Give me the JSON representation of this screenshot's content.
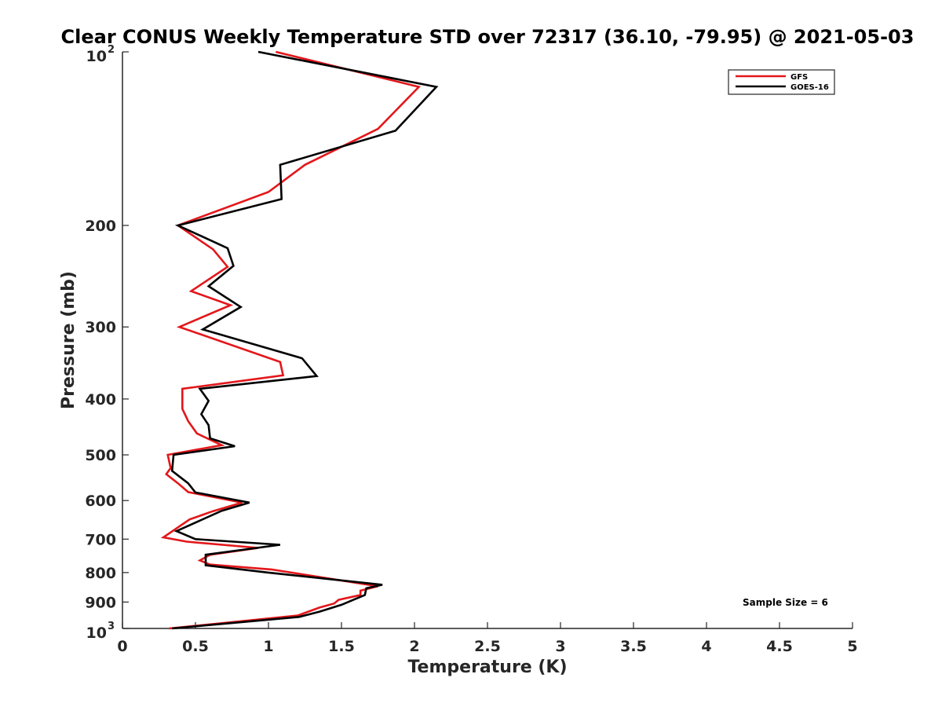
{
  "chart_data": {
    "type": "line",
    "title": "Clear CONUS Weekly Temperature STD over 72317 (36.10, -79.95) @ 2021-05-03",
    "xlabel": "Temperature (K)",
    "ylabel": "Pressure (mb)",
    "xlim": [
      0,
      5
    ],
    "ylim": [
      100,
      1000
    ],
    "y_scale": "log",
    "y_reversed": true,
    "grid": false,
    "legend_position": "top-right",
    "x_ticks": [
      {
        "value": 0,
        "label": "0"
      },
      {
        "value": 0.5,
        "label": "0.5"
      },
      {
        "value": 1,
        "label": "1"
      },
      {
        "value": 1.5,
        "label": "1.5"
      },
      {
        "value": 2,
        "label": "2"
      },
      {
        "value": 2.5,
        "label": "2.5"
      },
      {
        "value": 3,
        "label": "3"
      },
      {
        "value": 3.5,
        "label": "3.5"
      },
      {
        "value": 4,
        "label": "4"
      },
      {
        "value": 4.5,
        "label": "4.5"
      },
      {
        "value": 5,
        "label": "5"
      }
    ],
    "y_ticks": [
      {
        "value": 100,
        "label": "10",
        "sup": "2"
      },
      {
        "value": 200,
        "label": "200"
      },
      {
        "value": 300,
        "label": "300"
      },
      {
        "value": 400,
        "label": "400"
      },
      {
        "value": 500,
        "label": "500"
      },
      {
        "value": 600,
        "label": "600"
      },
      {
        "value": 700,
        "label": "700"
      },
      {
        "value": 800,
        "label": "800"
      },
      {
        "value": 900,
        "label": "900"
      },
      {
        "value": 1000,
        "label": "10",
        "sup": "3"
      }
    ],
    "annotation": "Sample Size = 6",
    "series": [
      {
        "name": "GFS",
        "color": "#e3171b",
        "points": [
          [
            1.05,
            100
          ],
          [
            2.03,
            115
          ],
          [
            1.75,
            136
          ],
          [
            1.25,
            157
          ],
          [
            1.0,
            175
          ],
          [
            0.38,
            200
          ],
          [
            0.62,
            220
          ],
          [
            0.72,
            236
          ],
          [
            0.47,
            260
          ],
          [
            0.74,
            275
          ],
          [
            0.39,
            300
          ],
          [
            1.08,
            345
          ],
          [
            1.1,
            364
          ],
          [
            0.41,
            384
          ],
          [
            0.41,
            416
          ],
          [
            0.45,
            437
          ],
          [
            0.51,
            459
          ],
          [
            0.68,
            481
          ],
          [
            0.31,
            500
          ],
          [
            0.33,
            527
          ],
          [
            0.3,
            540
          ],
          [
            0.38,
            560
          ],
          [
            0.45,
            580
          ],
          [
            0.82,
            605
          ],
          [
            0.62,
            626
          ],
          [
            0.46,
            647
          ],
          [
            0.28,
            695
          ],
          [
            0.44,
            707
          ],
          [
            0.93,
            725
          ],
          [
            0.6,
            745
          ],
          [
            0.53,
            762
          ],
          [
            0.6,
            775
          ],
          [
            1.02,
            790
          ],
          [
            1.75,
            845
          ],
          [
            1.63,
            860
          ],
          [
            1.63,
            875
          ],
          [
            1.48,
            892
          ],
          [
            1.45,
            905
          ],
          [
            1.35,
            920
          ],
          [
            1.2,
            950
          ],
          [
            0.32,
            1000
          ]
        ]
      },
      {
        "name": "GOES-16",
        "color": "#000000",
        "points": [
          [
            0.93,
            100
          ],
          [
            2.15,
            115
          ],
          [
            1.87,
            137
          ],
          [
            1.08,
            157
          ],
          [
            1.09,
            180
          ],
          [
            0.38,
            200
          ],
          [
            0.72,
            219
          ],
          [
            0.76,
            235
          ],
          [
            0.59,
            255
          ],
          [
            0.81,
            277
          ],
          [
            0.55,
            303
          ],
          [
            1.23,
            340
          ],
          [
            1.33,
            365
          ],
          [
            0.53,
            384
          ],
          [
            0.59,
            403
          ],
          [
            0.54,
            425
          ],
          [
            0.59,
            444
          ],
          [
            0.6,
            468
          ],
          [
            0.77,
            483
          ],
          [
            0.35,
            500
          ],
          [
            0.34,
            533
          ],
          [
            0.45,
            560
          ],
          [
            0.5,
            581
          ],
          [
            0.87,
            605
          ],
          [
            0.68,
            625
          ],
          [
            0.37,
            678
          ],
          [
            0.5,
            700
          ],
          [
            1.08,
            716
          ],
          [
            0.57,
            745
          ],
          [
            0.57,
            777
          ],
          [
            1.0,
            800
          ],
          [
            1.78,
            840
          ],
          [
            1.67,
            852
          ],
          [
            1.66,
            875
          ],
          [
            1.5,
            910
          ],
          [
            1.35,
            935
          ],
          [
            1.21,
            955
          ],
          [
            0.34,
            1000
          ]
        ]
      }
    ]
  }
}
